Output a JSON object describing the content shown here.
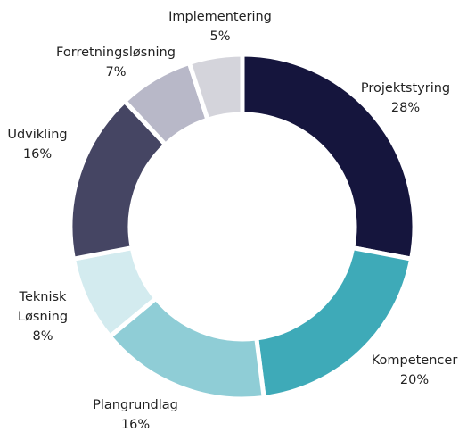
{
  "chart_data": {
    "type": "donut",
    "categories": [
      "Projektstyring",
      "Kompetencer",
      "Plangrundlag",
      "Teknisk Løsning",
      "Udvikling",
      "Forretningsløsning",
      "Implementering"
    ],
    "values": [
      28,
      20,
      16,
      8,
      16,
      7,
      5
    ],
    "value_labels": [
      "28%",
      "20%",
      "16%",
      "8%",
      "16%",
      "7%",
      "5%"
    ],
    "colors": [
      "#15153d",
      "#3eaab8",
      "#8fcdd6",
      "#d3ebef",
      "#454563",
      "#b8b8c8",
      "#d4d4db"
    ]
  }
}
